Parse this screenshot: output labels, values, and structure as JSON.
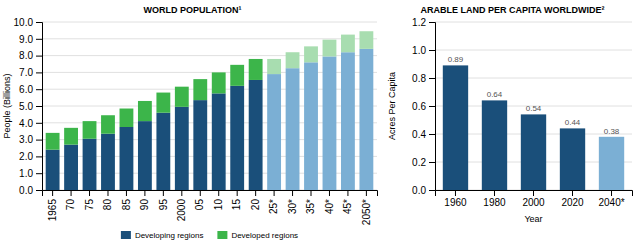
{
  "chart_data": [
    {
      "type": "bar",
      "title": "WORLD POPULATION¹",
      "ylabel": "People (Billions)",
      "categories": [
        "1965",
        "70",
        "75",
        "80",
        "85",
        "90",
        "95",
        "2000",
        "05",
        "10",
        "15",
        "20",
        "25*",
        "30*",
        "35*",
        "40*",
        "45*",
        "2050*"
      ],
      "series": [
        {
          "name": "Developing regions",
          "color": "#1a4f7a",
          "colors": [
            "#1a4f7a",
            "#1a4f7a",
            "#1a4f7a",
            "#1a4f7a",
            "#1a4f7a",
            "#1a4f7a",
            "#1a4f7a",
            "#1a4f7a",
            "#1a4f7a",
            "#1a4f7a",
            "#1a4f7a",
            "#1a4f7a",
            "#7bafd4",
            "#7bafd4",
            "#7bafd4",
            "#7bafd4",
            "#7bafd4",
            "#7bafd4"
          ],
          "values": [
            2.4,
            2.7,
            3.05,
            3.35,
            3.75,
            4.1,
            4.6,
            4.95,
            5.35,
            5.75,
            6.2,
            6.55,
            6.9,
            7.25,
            7.6,
            7.95,
            8.2,
            8.4
          ]
        },
        {
          "name": "Developed regions",
          "color": "#3cb54a",
          "colors": [
            "#3cb54a",
            "#3cb54a",
            "#3cb54a",
            "#3cb54a",
            "#3cb54a",
            "#3cb54a",
            "#3cb54a",
            "#3cb54a",
            "#3cb54a",
            "#3cb54a",
            "#3cb54a",
            "#3cb54a",
            "#a8ddb0",
            "#a8ddb0",
            "#a8ddb0",
            "#a8ddb0",
            "#a8ddb0",
            "#a8ddb0"
          ],
          "values": [
            1.0,
            1.0,
            1.05,
            1.1,
            1.1,
            1.2,
            1.2,
            1.2,
            1.25,
            1.25,
            1.25,
            1.25,
            0.9,
            0.95,
            0.95,
            1.0,
            1.05,
            1.05
          ]
        }
      ],
      "stacked": true,
      "ylim": [
        0,
        10.0
      ],
      "yticks": [
        {
          "value": 0,
          "label": "0.0"
        },
        {
          "value": 1,
          "label": "1.0"
        },
        {
          "value": 2,
          "label": "2.0"
        },
        {
          "value": 3,
          "label": "3.0"
        },
        {
          "value": 4,
          "label": "4.0"
        },
        {
          "value": 5,
          "label": "5.0"
        },
        {
          "value": 6,
          "label": "6.0"
        },
        {
          "value": 7,
          "label": "7.0"
        },
        {
          "value": 8,
          "label": "8.0"
        },
        {
          "value": 9,
          "label": "9.0"
        },
        {
          "value": 10,
          "label": "10.0"
        }
      ],
      "grid": true,
      "legend": "bottom"
    },
    {
      "type": "bar",
      "title": "ARABLE LAND PER CAPITA WORLDWIDE²",
      "xlabel": "Year",
      "ylabel": "Acres Per Capita",
      "categories": [
        "1960",
        "1980",
        "2000",
        "2020",
        "2040*"
      ],
      "values": [
        0.89,
        0.64,
        0.54,
        0.44,
        0.38
      ],
      "colors": [
        "#1a4f7a",
        "#1a4f7a",
        "#1a4f7a",
        "#1a4f7a",
        "#7bafd4"
      ],
      "ylim": [
        0,
        1.2
      ],
      "yticks": [
        {
          "value": 0,
          "label": "0.0"
        },
        0.2,
        0.4,
        0.6,
        0.8,
        {
          "value": 1,
          "label": "1.0"
        },
        1.2
      ],
      "grid": true,
      "data_labels": true
    }
  ]
}
